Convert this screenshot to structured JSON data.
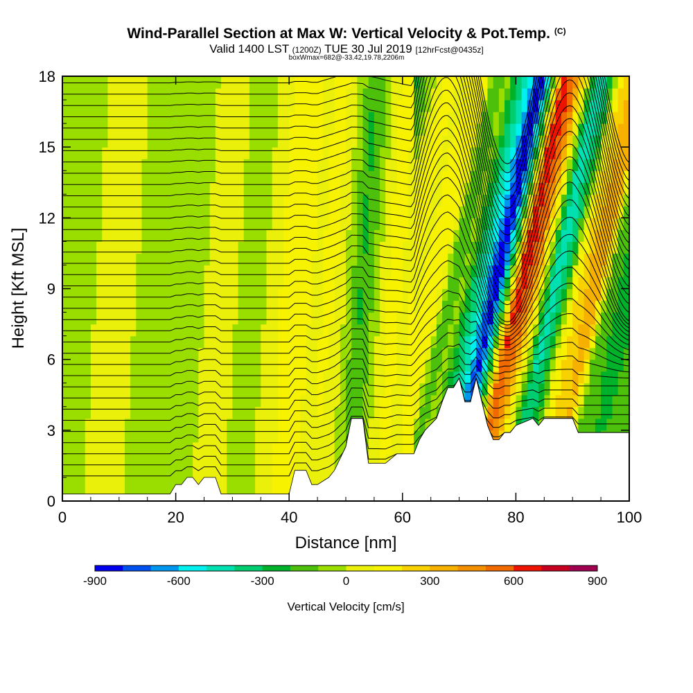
{
  "header": {
    "title": "Wind-Parallel Section at Max W: Vertical Velocity & Pot.Temp.",
    "title_mark": "(C)",
    "valid_prefix": "Valid 1400 LST",
    "valid_utc": "(1200Z)",
    "valid_date": "TUE 30 Jul 2019",
    "forecast_info": "[12hrFcst@0435z]",
    "box_info": "boxWmax=682@-33.42,19.78,2206m"
  },
  "chart_data": {
    "type": "heatmap",
    "title": "Wind-Parallel Section at Max W: Vertical Velocity & Pot.Temp.",
    "xlabel": "Distance [nm]",
    "ylabel": "Height [Kft MSL]",
    "xlim": [
      0,
      100
    ],
    "ylim": [
      0,
      18
    ],
    "xticks": [
      "0",
      "20",
      "40",
      "60",
      "80",
      "100"
    ],
    "yticks": [
      "0",
      "3",
      "6",
      "9",
      "12",
      "15",
      "18"
    ],
    "terrain_profile": {
      "x": [
        0,
        19,
        20,
        21,
        22,
        23,
        24,
        25,
        27,
        28,
        40,
        41,
        43,
        44,
        45,
        47,
        48,
        50,
        51,
        53,
        54,
        57,
        59,
        62,
        63,
        64,
        66,
        67,
        68,
        69,
        70,
        71,
        72,
        73,
        74,
        75,
        76,
        77,
        78,
        79,
        80,
        83,
        84,
        85,
        90,
        91,
        100
      ],
      "height_kft": [
        0.3,
        0.3,
        0.7,
        0.7,
        1.0,
        1.0,
        0.7,
        1.0,
        1.0,
        0.3,
        0.3,
        1.3,
        1.3,
        0.7,
        0.7,
        1.0,
        1.3,
        2.3,
        3.5,
        3.5,
        1.6,
        1.6,
        2.0,
        2.0,
        2.6,
        3.0,
        3.5,
        4.2,
        4.8,
        4.8,
        5.2,
        4.2,
        4.2,
        5.2,
        4.2,
        3.2,
        2.6,
        2.6,
        2.9,
        2.9,
        3.2,
        3.5,
        3.2,
        3.5,
        3.5,
        2.9,
        2.9
      ]
    },
    "velocity_profile": {
      "x": [
        0,
        2,
        4,
        6,
        8,
        10,
        12,
        14,
        16,
        18,
        20,
        22,
        24,
        26,
        28,
        30,
        32,
        34,
        36,
        38,
        40,
        42,
        44,
        46,
        48,
        50,
        52,
        54,
        56,
        58,
        60,
        62,
        64,
        66,
        68,
        70,
        72,
        74,
        76,
        78,
        80,
        82,
        84,
        86,
        88,
        90,
        92,
        94,
        96,
        98,
        100
      ],
      "w_cms": [
        -40,
        -60,
        -30,
        20,
        40,
        60,
        10,
        -60,
        -80,
        -40,
        0,
        -30,
        -10,
        30,
        40,
        10,
        -80,
        -40,
        30,
        100,
        180,
        150,
        60,
        120,
        80,
        -60,
        -200,
        -100,
        60,
        160,
        40,
        180,
        120,
        -180,
        -60,
        -300,
        -500,
        -850,
        -200,
        620,
        480,
        60,
        -450,
        -300,
        150,
        280,
        350,
        -120,
        -200,
        -260,
        -180
      ]
    },
    "contour_variable": "Potential Temperature",
    "contour_levels_shown": [
      10,
      12,
      14,
      16,
      18,
      20,
      22,
      24,
      26,
      28,
      30,
      32,
      34,
      36,
      38,
      40,
      42,
      44,
      46,
      48,
      50,
      52,
      54,
      56
    ],
    "colorbar": {
      "label": "Vertical Velocity [cm/s]",
      "min": -900,
      "max": 900,
      "step": 100,
      "tick_labels": [
        "-900",
        "-600",
        "-300",
        "0",
        "300",
        "600",
        "900"
      ],
      "colors": [
        "#0000ee",
        "#0050f0",
        "#0096f0",
        "#00f0f0",
        "#00e0b0",
        "#00cc70",
        "#00b22a",
        "#4cc00a",
        "#9ade00",
        "#eaf00a",
        "#f6f200",
        "#f8d200",
        "#f6b000",
        "#f49000",
        "#f06a00",
        "#ee1200",
        "#c80020",
        "#a00050"
      ]
    }
  }
}
